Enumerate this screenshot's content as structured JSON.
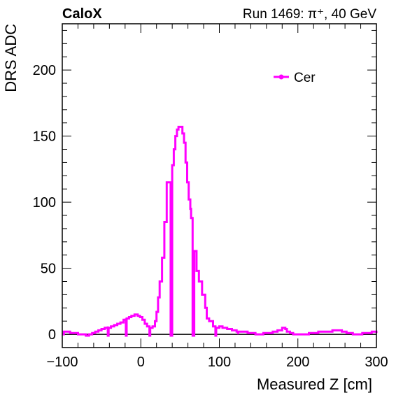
{
  "header": {
    "left": "CaloX",
    "right": "Run 1469:   π⁺, 40 GeV"
  },
  "chart_data": {
    "type": "line",
    "title": "",
    "xlabel": "Measured Z [cm]",
    "ylabel": "DRS ADC",
    "xlim": [
      -100,
      300
    ],
    "ylim": [
      -10,
      235
    ],
    "xticks": [
      -100,
      0,
      100,
      200,
      300
    ],
    "xtick_labels": [
      "−100",
      "0",
      "100",
      "200",
      "300"
    ],
    "yticks": [
      0,
      50,
      100,
      150,
      200
    ],
    "ytick_labels": [
      "0",
      "50",
      "100",
      "150",
      "200"
    ],
    "grid": false,
    "legend": {
      "placement": "top-right",
      "entries": [
        "Cer"
      ]
    },
    "zero_line": 0,
    "series": [
      {
        "name": "Cer",
        "color": "#ff00ff",
        "style": "step",
        "points": [
          [
            -100,
            0
          ],
          [
            -98,
            2
          ],
          [
            -93,
            2
          ],
          [
            -90,
            1
          ],
          [
            -85,
            1
          ],
          [
            -80,
            0
          ],
          [
            -75,
            0
          ],
          [
            -70,
            -1
          ],
          [
            -66,
            0
          ],
          [
            -62,
            1
          ],
          [
            -58,
            2
          ],
          [
            -54,
            3
          ],
          [
            -50,
            4
          ],
          [
            -46,
            5
          ],
          [
            -42,
            6
          ],
          [
            -42,
            -1
          ],
          [
            -41,
            5
          ],
          [
            -38,
            6
          ],
          [
            -34,
            7
          ],
          [
            -30,
            8
          ],
          [
            -26,
            9
          ],
          [
            -22,
            11
          ],
          [
            -19,
            12
          ],
          [
            -19,
            -1
          ],
          [
            -18,
            12
          ],
          [
            -15,
            13
          ],
          [
            -12,
            14
          ],
          [
            -8,
            15
          ],
          [
            -4,
            14
          ],
          [
            -1,
            13
          ],
          [
            2,
            11
          ],
          [
            5,
            8
          ],
          [
            8,
            6
          ],
          [
            11,
            6
          ],
          [
            11,
            -1
          ],
          [
            12,
            5
          ],
          [
            15,
            6
          ],
          [
            18,
            10
          ],
          [
            20,
            17
          ],
          [
            22,
            28
          ],
          [
            24,
            40
          ],
          [
            27,
            58
          ],
          [
            30,
            85
          ],
          [
            33,
            85
          ],
          [
            33,
            115
          ],
          [
            36,
            115
          ],
          [
            38,
            -1
          ],
          [
            39,
            -1
          ],
          [
            40,
            128
          ],
          [
            42,
            140
          ],
          [
            44,
            150
          ],
          [
            46,
            155
          ],
          [
            48,
            157
          ],
          [
            51,
            157
          ],
          [
            53,
            152
          ],
          [
            55,
            145
          ],
          [
            57,
            130
          ],
          [
            59,
            115
          ],
          [
            61,
            102
          ],
          [
            63,
            95
          ],
          [
            64,
            88
          ],
          [
            66,
            -1
          ],
          [
            67,
            -1
          ],
          [
            68,
            63
          ],
          [
            70,
            63
          ],
          [
            71,
            48
          ],
          [
            74,
            40
          ],
          [
            78,
            30
          ],
          [
            82,
            20
          ],
          [
            84,
            12
          ],
          [
            87,
            10
          ],
          [
            90,
            10
          ],
          [
            92,
            6
          ],
          [
            95,
            6
          ],
          [
            95,
            -1
          ],
          [
            96,
            5
          ],
          [
            100,
            6
          ],
          [
            104,
            5
          ],
          [
            110,
            4
          ],
          [
            116,
            3
          ],
          [
            122,
            2
          ],
          [
            124,
            0
          ],
          [
            124,
            2
          ],
          [
            130,
            2
          ],
          [
            136,
            1
          ],
          [
            140,
            1
          ],
          [
            146,
            0
          ],
          [
            150,
            0
          ],
          [
            156,
            1
          ],
          [
            162,
            1
          ],
          [
            168,
            2
          ],
          [
            174,
            3
          ],
          [
            180,
            5
          ],
          [
            184,
            4
          ],
          [
            186,
            2
          ],
          [
            190,
            1
          ],
          [
            194,
            0
          ],
          [
            200,
            0
          ],
          [
            206,
            0
          ],
          [
            210,
            0
          ],
          [
            214,
            1
          ],
          [
            220,
            1
          ],
          [
            226,
            2
          ],
          [
            232,
            2
          ],
          [
            238,
            2
          ],
          [
            244,
            3
          ],
          [
            250,
            3
          ],
          [
            256,
            2
          ],
          [
            262,
            1
          ],
          [
            266,
            1
          ],
          [
            270,
            0
          ],
          [
            274,
            0
          ],
          [
            278,
            0
          ],
          [
            282,
            1
          ],
          [
            286,
            1
          ],
          [
            290,
            1
          ],
          [
            294,
            2
          ],
          [
            298,
            2
          ],
          [
            300,
            1
          ]
        ]
      }
    ]
  }
}
